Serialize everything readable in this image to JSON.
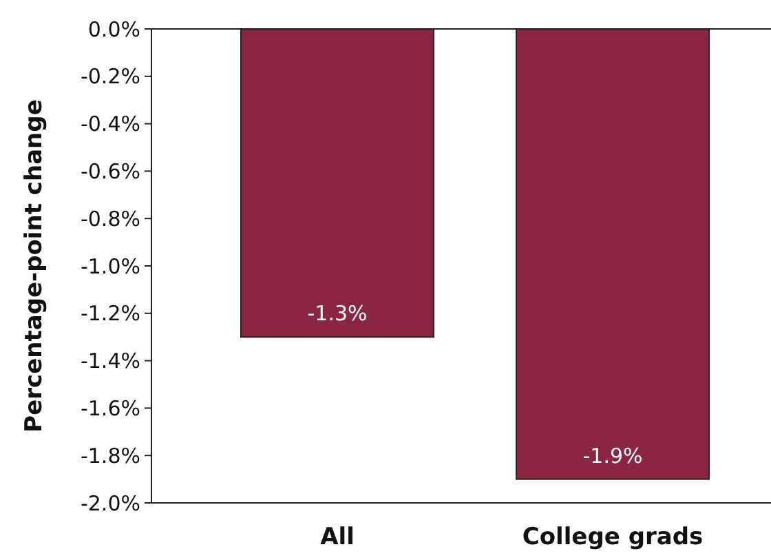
{
  "chart_data": {
    "type": "bar",
    "ylabel": "Percentage-point change",
    "categories": [
      "All",
      "College grads"
    ],
    "values": [
      -1.3,
      -1.9
    ],
    "color": "#8b2642",
    "value_labels": [
      "-1.3%",
      "-1.9%"
    ],
    "ylim": [
      -2.0,
      0.0
    ],
    "yticks": [
      {
        "value": 0,
        "label": "0.0%"
      },
      {
        "value": -0.2,
        "label": "-0.2%"
      },
      {
        "value": -0.4,
        "label": "-0.4%"
      },
      {
        "value": -0.6,
        "label": "-0.6%"
      },
      {
        "value": -0.8,
        "label": "-0.8%"
      },
      {
        "value": -1.0,
        "label": "-1.0%"
      },
      {
        "value": -1.2,
        "label": "-1.2%"
      },
      {
        "value": -1.4,
        "label": "-1.4%"
      },
      {
        "value": -1.6,
        "label": "-1.6%"
      },
      {
        "value": -1.8,
        "label": "-1.8%"
      },
      {
        "value": -2.0,
        "label": "-2.0%"
      }
    ],
    "grid": false
  }
}
